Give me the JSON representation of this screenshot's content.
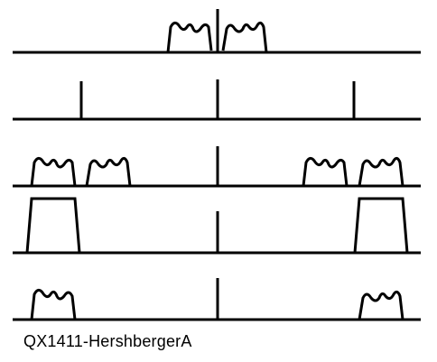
{
  "caption": "QX1411-HershbergerA",
  "colors": {
    "ink": "#000000",
    "background": "#ffffff"
  },
  "rows": [
    {
      "name": "row-1-baseband-spectrum",
      "sidebands": [
        "lsb-wavy",
        "usb-wavy"
      ]
    },
    {
      "name": "row-2-carrier-and-lo",
      "markers": [
        "left-spike",
        "center-spike",
        "right-spike"
      ]
    },
    {
      "name": "row-3-mixed-spectrum",
      "sidebands": [
        "left-lsb",
        "left-usb",
        "right-lsb",
        "right-usb"
      ]
    },
    {
      "name": "row-4-filter-response",
      "filters": [
        "left-bandpass",
        "right-bandpass"
      ]
    },
    {
      "name": "row-5-filtered-output",
      "sidebands": [
        "left-output",
        "right-output"
      ]
    }
  ]
}
